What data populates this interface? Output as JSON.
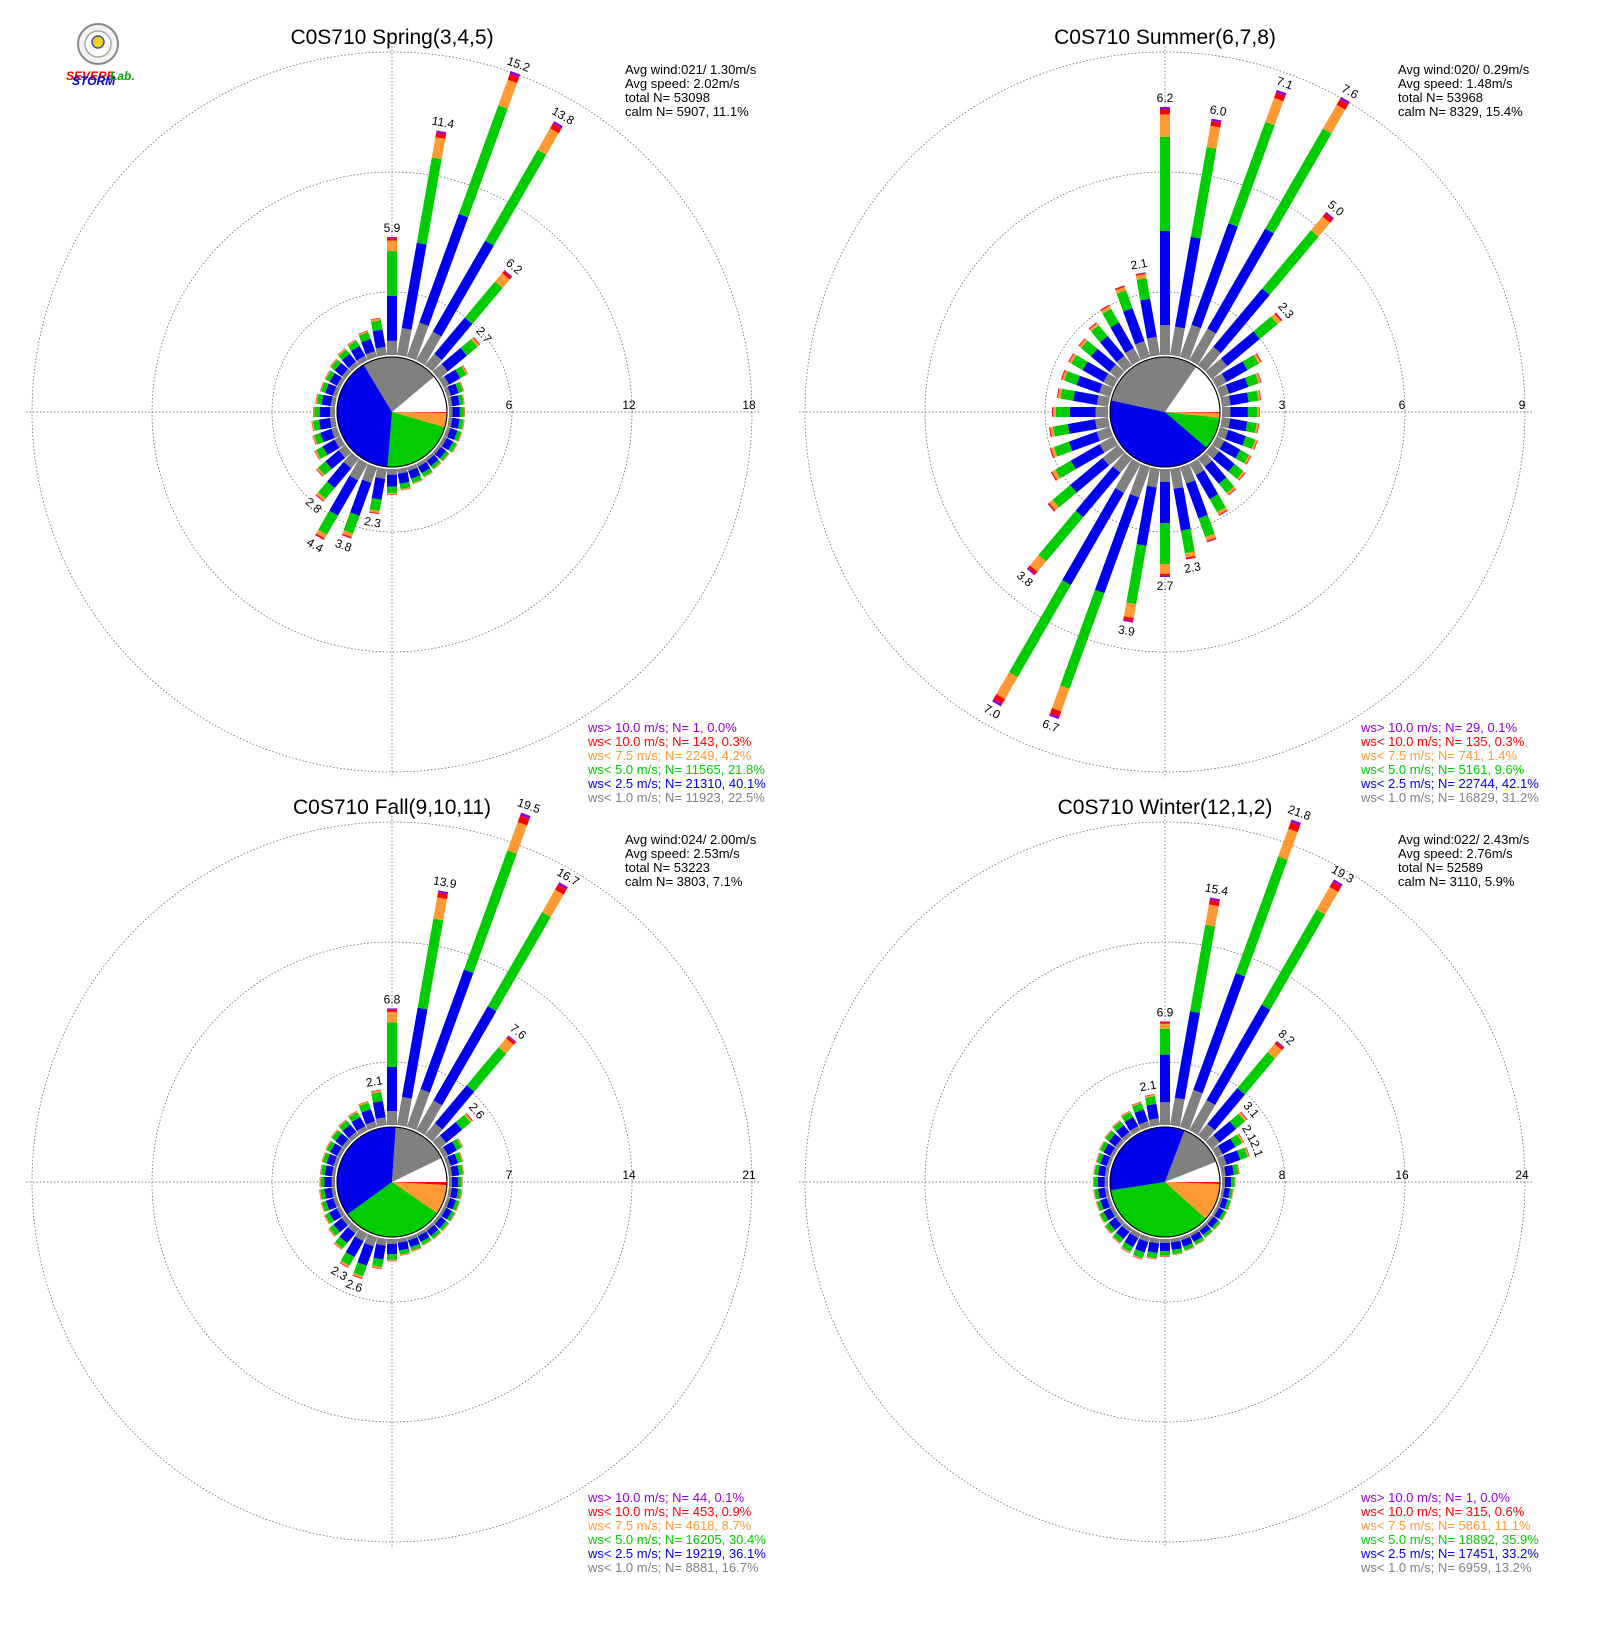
{
  "logo": {
    "text_severe": "SEVERE",
    "text_storm": "STORM",
    "text_lab": "Lab.",
    "color_severe": "#e60000",
    "color_storm": "#0000cc",
    "color_lab": "#00aa00"
  },
  "colors": {
    "gt10": "#9400d3",
    "lt10": "#ff0000",
    "lt75": "#ff9933",
    "lt5": "#00cc00",
    "lt25": "#0000ee",
    "lt1": "#808080",
    "grid": "#555555"
  },
  "chart_data": [
    {
      "type": "windrose",
      "title": "C0S710 Spring(3,4,5)",
      "rings": [
        6,
        12,
        18
      ],
      "ring_labels": [
        "6",
        "12",
        "18"
      ],
      "stats": [
        "Avg wind:021/ 1.30m/s",
        "Avg speed: 2.02m/s",
        "total N=      53098",
        "calm N=   5907,  11.1%"
      ],
      "legend": [
        {
          "text": "ws> 10.0 m/s; N=      1,  0.0%",
          "color_key": "gt10"
        },
        {
          "text": "ws< 10.0 m/s; N=    143,  0.3%",
          "color_key": "lt10"
        },
        {
          "text": "ws<  7.5 m/s; N=   2249,  4.2%",
          "color_key": "lt75"
        },
        {
          "text": "ws<  5.0 m/s; N= 11565, 21.8%",
          "color_key": "lt5"
        },
        {
          "text": "ws<  2.5 m/s; N= 21310, 40.1%",
          "color_key": "lt25"
        },
        {
          "text": "ws<  1.0 m/s; N= 11923, 22.5%",
          "color_key": "lt1"
        }
      ],
      "pie": [
        22.5,
        40.1,
        21.8,
        4.2,
        0.3,
        0.0
      ],
      "bars": [
        {
          "dir": 0,
          "total": 5.9,
          "label": "5.9"
        },
        {
          "dir": 10,
          "total": 11.4,
          "label": "11.4"
        },
        {
          "dir": 20,
          "total": 15.2,
          "label": "15.2"
        },
        {
          "dir": 30,
          "total": 13.8,
          "label": "13.8"
        },
        {
          "dir": 40,
          "total": 6.2,
          "label": "6.2"
        },
        {
          "dir": 50,
          "total": 2.7,
          "label": "2.7"
        },
        {
          "dir": 60,
          "total": 1.4
        },
        {
          "dir": 70,
          "total": 0.9
        },
        {
          "dir": 80,
          "total": 0.8
        },
        {
          "dir": 90,
          "total": 0.8
        },
        {
          "dir": 100,
          "total": 0.8
        },
        {
          "dir": 110,
          "total": 0.8
        },
        {
          "dir": 120,
          "total": 0.8
        },
        {
          "dir": 130,
          "total": 0.7
        },
        {
          "dir": 140,
          "total": 0.7
        },
        {
          "dir": 150,
          "total": 0.8
        },
        {
          "dir": 160,
          "total": 0.9
        },
        {
          "dir": 170,
          "total": 1.1
        },
        {
          "dir": 180,
          "total": 1.3
        },
        {
          "dir": 190,
          "total": 2.3,
          "label": "2.3"
        },
        {
          "dir": 200,
          "total": 3.8,
          "label": "3.8"
        },
        {
          "dir": 210,
          "total": 4.4,
          "label": "4.4"
        },
        {
          "dir": 220,
          "total": 2.8,
          "label": "2.8"
        },
        {
          "dir": 230,
          "total": 1.9
        },
        {
          "dir": 240,
          "total": 1.5
        },
        {
          "dir": 250,
          "total": 1.3
        },
        {
          "dir": 260,
          "total": 1.2
        },
        {
          "dir": 270,
          "total": 1.1
        },
        {
          "dir": 280,
          "total": 1.0
        },
        {
          "dir": 290,
          "total": 0.9
        },
        {
          "dir": 300,
          "total": 0.9
        },
        {
          "dir": 310,
          "total": 1.0
        },
        {
          "dir": 320,
          "total": 1.1
        },
        {
          "dir": 330,
          "total": 1.2
        },
        {
          "dir": 340,
          "total": 1.4
        },
        {
          "dir": 350,
          "total": 1.9
        }
      ]
    },
    {
      "type": "windrose",
      "title": "C0S710 Summer(6,7,8)",
      "rings": [
        3,
        6,
        9
      ],
      "ring_labels": [
        "3",
        "6",
        "9"
      ],
      "stats": [
        "Avg wind:020/ 0.29m/s",
        "Avg speed: 1.48m/s",
        "total N=      53968",
        "calm N=   8329,  15.4%"
      ],
      "legend": [
        {
          "text": "ws> 10.0 m/s; N=     29,  0.1%",
          "color_key": "gt10"
        },
        {
          "text": "ws< 10.0 m/s; N=    135,  0.3%",
          "color_key": "lt10"
        },
        {
          "text": "ws<  7.5 m/s; N=    741,  1.4%",
          "color_key": "lt75"
        },
        {
          "text": "ws<  5.0 m/s; N=   5161,  9.6%",
          "color_key": "lt5"
        },
        {
          "text": "ws<  2.5 m/s; N= 22744, 42.1%",
          "color_key": "lt25"
        },
        {
          "text": "ws<  1.0 m/s; N= 16829, 31.2%",
          "color_key": "lt1"
        }
      ],
      "pie": [
        31.2,
        42.1,
        9.6,
        1.4,
        0.3,
        0.1
      ],
      "bars": [
        {
          "dir": 0,
          "total": 6.2,
          "label": "6.2"
        },
        {
          "dir": 10,
          "total": 6.0,
          "label": "6.0"
        },
        {
          "dir": 20,
          "total": 7.1,
          "label": "7.1"
        },
        {
          "dir": 30,
          "total": 7.6,
          "label": "7.6"
        },
        {
          "dir": 40,
          "total": 5.0,
          "label": "5.0"
        },
        {
          "dir": 50,
          "total": 2.3,
          "label": "2.3"
        },
        {
          "dir": 60,
          "total": 1.3
        },
        {
          "dir": 70,
          "total": 1.1
        },
        {
          "dir": 80,
          "total": 1.0
        },
        {
          "dir": 90,
          "total": 0.95
        },
        {
          "dir": 100,
          "total": 0.95
        },
        {
          "dir": 110,
          "total": 1.0
        },
        {
          "dir": 120,
          "total": 1.0
        },
        {
          "dir": 130,
          "total": 1.1
        },
        {
          "dir": 140,
          "total": 1.2
        },
        {
          "dir": 150,
          "total": 1.5
        },
        {
          "dir": 160,
          "total": 2.0
        },
        {
          "dir": 170,
          "total": 2.3,
          "label": "2.3"
        },
        {
          "dir": 180,
          "total": 2.7,
          "label": "2.7"
        },
        {
          "dir": 190,
          "total": 3.9,
          "label": "3.9"
        },
        {
          "dir": 200,
          "total": 6.7,
          "label": "6.7"
        },
        {
          "dir": 210,
          "total": 7.0,
          "label": "7.0"
        },
        {
          "dir": 220,
          "total": 3.8,
          "label": "3.8"
        },
        {
          "dir": 230,
          "total": 2.3
        },
        {
          "dir": 240,
          "total": 1.8
        },
        {
          "dir": 250,
          "total": 1.6
        },
        {
          "dir": 260,
          "total": 1.5
        },
        {
          "dir": 270,
          "total": 1.4
        },
        {
          "dir": 280,
          "total": 1.3
        },
        {
          "dir": 290,
          "total": 1.3
        },
        {
          "dir": 300,
          "total": 1.3
        },
        {
          "dir": 310,
          "total": 1.3
        },
        {
          "dir": 320,
          "total": 1.4
        },
        {
          "dir": 330,
          "total": 1.6
        },
        {
          "dir": 340,
          "total": 1.9
        },
        {
          "dir": 350,
          "total": 2.1,
          "label": "2.1"
        }
      ]
    },
    {
      "type": "windrose",
      "title": "C0S710 Fall(9,10,11)",
      "rings": [
        7,
        14,
        21
      ],
      "ring_labels": [
        "7",
        "14",
        "21"
      ],
      "stats": [
        "Avg wind:024/ 2.00m/s",
        "Avg speed: 2.53m/s",
        "total N=      53223",
        "calm N=   3803,   7.1%"
      ],
      "legend": [
        {
          "text": "ws> 10.0 m/s; N=     44,  0.1%",
          "color_key": "gt10"
        },
        {
          "text": "ws< 10.0 m/s; N=    453,  0.9%",
          "color_key": "lt10"
        },
        {
          "text": "ws<  7.5 m/s; N=   4618,  8.7%",
          "color_key": "lt75"
        },
        {
          "text": "ws<  5.0 m/s; N= 16205, 30.4%",
          "color_key": "lt5"
        },
        {
          "text": "ws<  2.5 m/s; N= 19219, 36.1%",
          "color_key": "lt25"
        },
        {
          "text": "ws<  1.0 m/s; N=   8881, 16.7%",
          "color_key": "lt1"
        }
      ],
      "pie": [
        16.7,
        36.1,
        30.4,
        8.7,
        0.9,
        0.1
      ],
      "bars": [
        {
          "dir": 0,
          "total": 6.8,
          "label": "6.8"
        },
        {
          "dir": 10,
          "total": 13.9,
          "label": "13.9"
        },
        {
          "dir": 20,
          "total": 19.5,
          "label": "19.5"
        },
        {
          "dir": 30,
          "total": 16.7,
          "label": "16.7"
        },
        {
          "dir": 40,
          "total": 7.6,
          "label": "7.6"
        },
        {
          "dir": 50,
          "total": 2.6,
          "label": "2.6"
        },
        {
          "dir": 60,
          "total": 1.3
        },
        {
          "dir": 70,
          "total": 1.0
        },
        {
          "dir": 80,
          "total": 0.9
        },
        {
          "dir": 90,
          "total": 0.8
        },
        {
          "dir": 100,
          "total": 0.8
        },
        {
          "dir": 110,
          "total": 0.8
        },
        {
          "dir": 120,
          "total": 0.8
        },
        {
          "dir": 130,
          "total": 0.8
        },
        {
          "dir": 140,
          "total": 0.8
        },
        {
          "dir": 150,
          "total": 0.8
        },
        {
          "dir": 160,
          "total": 0.9
        },
        {
          "dir": 170,
          "total": 1.0
        },
        {
          "dir": 180,
          "total": 1.3
        },
        {
          "dir": 190,
          "total": 1.8
        },
        {
          "dir": 200,
          "total": 2.6,
          "label": "2.6"
        },
        {
          "dir": 210,
          "total": 2.3,
          "label": "2.3"
        },
        {
          "dir": 220,
          "total": 1.6
        },
        {
          "dir": 230,
          "total": 1.3
        },
        {
          "dir": 240,
          "total": 1.1
        },
        {
          "dir": 250,
          "total": 1.0
        },
        {
          "dir": 260,
          "total": 0.95
        },
        {
          "dir": 270,
          "total": 0.9
        },
        {
          "dir": 280,
          "total": 0.9
        },
        {
          "dir": 290,
          "total": 0.95
        },
        {
          "dir": 300,
          "total": 1.0
        },
        {
          "dir": 310,
          "total": 1.1
        },
        {
          "dir": 320,
          "total": 1.2
        },
        {
          "dir": 330,
          "total": 1.3
        },
        {
          "dir": 340,
          "total": 1.6
        },
        {
          "dir": 350,
          "total": 2.1,
          "label": "2.1"
        }
      ]
    },
    {
      "type": "windrose",
      "title": "C0S710 Winter(12,1,2)",
      "rings": [
        8,
        16,
        24
      ],
      "ring_labels": [
        "8",
        "16",
        "24"
      ],
      "stats": [
        "Avg wind:022/ 2.43m/s",
        "Avg speed: 2.76m/s",
        "total N=      52589",
        "calm N=   3110,   5.9%"
      ],
      "legend": [
        {
          "text": "ws> 10.0 m/s; N=      1,  0.0%",
          "color_key": "gt10"
        },
        {
          "text": "ws< 10.0 m/s; N=    315,  0.6%",
          "color_key": "lt10"
        },
        {
          "text": "ws<  7.5 m/s; N=   5861, 11.1%",
          "color_key": "lt75"
        },
        {
          "text": "ws<  5.0 m/s; N= 18892, 35.9%",
          "color_key": "lt5"
        },
        {
          "text": "ws<  2.5 m/s; N= 17451, 33.2%",
          "color_key": "lt25"
        },
        {
          "text": "ws<  1.0 m/s; N=   6959, 13.2%",
          "color_key": "lt1"
        }
      ],
      "pie": [
        13.2,
        33.2,
        35.9,
        11.1,
        0.6,
        0.0
      ],
      "bars": [
        {
          "dir": 0,
          "total": 6.9,
          "label": "6.9"
        },
        {
          "dir": 10,
          "total": 15.4,
          "label": "15.4"
        },
        {
          "dir": 20,
          "total": 21.8,
          "label": "21.8"
        },
        {
          "dir": 30,
          "total": 19.3,
          "label": "19.3"
        },
        {
          "dir": 40,
          "total": 8.2,
          "label": "8.2"
        },
        {
          "dir": 50,
          "total": 3.1,
          "label": "3.1"
        },
        {
          "dir": 60,
          "total": 2.1,
          "label": "2.1"
        },
        {
          "dir": 70,
          "total": 2.1,
          "label": "2.1"
        },
        {
          "dir": 80,
          "total": 1.2
        },
        {
          "dir": 90,
          "total": 0.9
        },
        {
          "dir": 100,
          "total": 0.8
        },
        {
          "dir": 110,
          "total": 0.8
        },
        {
          "dir": 120,
          "total": 0.8
        },
        {
          "dir": 130,
          "total": 0.8
        },
        {
          "dir": 140,
          "total": 0.8
        },
        {
          "dir": 150,
          "total": 0.9
        },
        {
          "dir": 160,
          "total": 1.0
        },
        {
          "dir": 170,
          "total": 1.1
        },
        {
          "dir": 180,
          "total": 1.2
        },
        {
          "dir": 190,
          "total": 1.4
        },
        {
          "dir": 200,
          "total": 1.6
        },
        {
          "dir": 210,
          "total": 1.5
        },
        {
          "dir": 220,
          "total": 1.3
        },
        {
          "dir": 230,
          "total": 1.2
        },
        {
          "dir": 240,
          "total": 1.1
        },
        {
          "dir": 250,
          "total": 1.0
        },
        {
          "dir": 260,
          "total": 1.0
        },
        {
          "dir": 270,
          "total": 1.0
        },
        {
          "dir": 280,
          "total": 1.0
        },
        {
          "dir": 290,
          "total": 1.0
        },
        {
          "dir": 300,
          "total": 1.1
        },
        {
          "dir": 310,
          "total": 1.2
        },
        {
          "dir": 320,
          "total": 1.3
        },
        {
          "dir": 330,
          "total": 1.5
        },
        {
          "dir": 340,
          "total": 1.8
        },
        {
          "dir": 350,
          "total": 2.1,
          "label": "2.1"
        }
      ]
    }
  ]
}
